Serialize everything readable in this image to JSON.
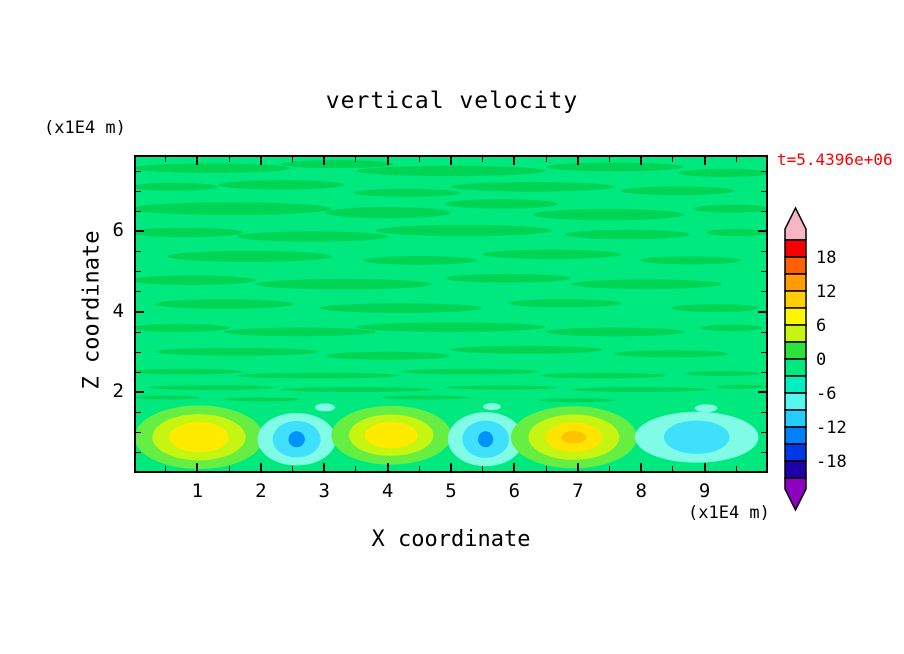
{
  "title": "vertical velocity",
  "time_label": "t=5.4396e+06",
  "axes": {
    "x_label": "X coordinate",
    "x_unit": "(x1E4 m)",
    "y_label": "Z coordinate",
    "y_unit": "(x1E4 m)",
    "xlim": [
      0,
      10
    ],
    "ylim": [
      0,
      7.9
    ],
    "x_ticks": [
      1,
      2,
      3,
      4,
      5,
      6,
      7,
      8,
      9
    ],
    "x_minor": [
      0.5,
      1.5,
      2.5,
      3.5,
      4.5,
      5.5,
      6.5,
      7.5,
      8.5,
      9.5
    ],
    "y_ticks": [
      2,
      4,
      6
    ],
    "y_minor": [
      0.5,
      1,
      1.5,
      2.5,
      3,
      3.5,
      4.5,
      5,
      5.5,
      6.5,
      7,
      7.5
    ]
  },
  "colorbar": {
    "labels": [
      "18",
      "12",
      "6",
      "0",
      "-6",
      "-12",
      "-18"
    ],
    "levels": [
      21,
      18,
      15,
      12,
      9,
      6,
      3,
      0,
      -3,
      -6,
      -9,
      -12,
      -15,
      -18,
      -21
    ],
    "box_colors": [
      "#f80000",
      "#ff6000",
      "#ff9c00",
      "#ffcf00",
      "#fdf800",
      "#c9f412",
      "#2ce23c",
      "#00e97e",
      "#00efc0",
      "#57f7f0",
      "#25ccff",
      "#0080ff",
      "#0038e8",
      "#2000a8"
    ],
    "top_arrow_color": "#f6b6c6",
    "bottom_arrow_color": "#8c00c0"
  },
  "chart_data": {
    "type": "heatmap",
    "title": "vertical velocity",
    "xlabel": "X coordinate (x1E4 m)",
    "ylabel": "Z coordinate (x1E4 m)",
    "time_annotation": "t=5.4396e+06",
    "xlim": [
      0,
      10
    ],
    "ylim": [
      0,
      7.9
    ],
    "contour_interval": 3,
    "value_range_shown": [
      -21,
      21
    ],
    "legend_position": "right",
    "grid": false,
    "description": "Filled contour field of vertical velocity: near-zero spring-green background with thin darker-green streaks aloft (z > 2), and alternating convective cells below z = 2 - updrafts (yellow cores, about +9 to +15) and downdrafts (cyan/blue cores, about -6 to -12).",
    "updrafts": [
      {
        "x": 1.0,
        "z": 0.85,
        "peak": 13
      },
      {
        "x": 4.05,
        "z": 0.9,
        "peak": 12
      },
      {
        "x": 6.95,
        "z": 0.85,
        "peak": 15
      }
    ],
    "downdrafts": [
      {
        "x": 2.55,
        "z": 0.8,
        "peak": -11
      },
      {
        "x": 5.55,
        "z": 0.8,
        "peak": -11
      },
      {
        "x": 8.9,
        "z": 0.85,
        "peak": -8
      }
    ],
    "field": {
      "bg_color": "#00e97e",
      "streak_color": "#00d455",
      "streaks": [
        [
          1.2,
          7.62,
          1.25,
          0.12
        ],
        [
          3.2,
          7.72,
          0.9,
          0.1
        ],
        [
          5.0,
          7.55,
          1.5,
          0.13
        ],
        [
          7.6,
          7.65,
          1.1,
          0.11
        ],
        [
          9.35,
          7.5,
          0.75,
          0.1
        ],
        [
          0.6,
          7.15,
          0.7,
          0.1
        ],
        [
          2.3,
          7.2,
          1.0,
          0.12
        ],
        [
          4.3,
          7.0,
          0.85,
          0.1
        ],
        [
          6.3,
          7.15,
          1.3,
          0.12
        ],
        [
          8.6,
          7.05,
          0.9,
          0.11
        ],
        [
          1.5,
          6.6,
          1.6,
          0.16
        ],
        [
          4.0,
          6.5,
          1.0,
          0.14
        ],
        [
          5.8,
          6.72,
          0.9,
          0.12
        ],
        [
          7.5,
          6.45,
          1.2,
          0.14
        ],
        [
          9.45,
          6.6,
          0.6,
          0.1
        ],
        [
          0.8,
          6.0,
          0.9,
          0.12
        ],
        [
          2.8,
          5.9,
          1.2,
          0.13
        ],
        [
          5.2,
          6.05,
          1.4,
          0.14
        ],
        [
          7.8,
          5.95,
          1.0,
          0.12
        ],
        [
          9.55,
          6.0,
          0.5,
          0.09
        ],
        [
          1.8,
          5.4,
          1.3,
          0.14
        ],
        [
          4.5,
          5.3,
          0.9,
          0.11
        ],
        [
          6.6,
          5.45,
          1.1,
          0.12
        ],
        [
          8.8,
          5.3,
          0.8,
          0.1
        ],
        [
          0.9,
          4.8,
          1.0,
          0.12
        ],
        [
          3.3,
          4.7,
          1.4,
          0.13
        ],
        [
          5.9,
          4.85,
          1.0,
          0.11
        ],
        [
          8.1,
          4.7,
          1.2,
          0.12
        ],
        [
          1.4,
          4.2,
          1.1,
          0.12
        ],
        [
          4.2,
          4.1,
          1.3,
          0.12
        ],
        [
          6.8,
          4.22,
          0.9,
          0.1
        ],
        [
          9.2,
          4.1,
          0.7,
          0.1
        ],
        [
          0.7,
          3.6,
          0.8,
          0.1
        ],
        [
          2.6,
          3.5,
          1.2,
          0.11
        ],
        [
          5.0,
          3.62,
          1.5,
          0.12
        ],
        [
          7.6,
          3.5,
          1.1,
          0.11
        ],
        [
          9.45,
          3.6,
          0.5,
          0.08
        ],
        [
          1.6,
          3.0,
          1.3,
          0.1
        ],
        [
          4.0,
          2.9,
          1.0,
          0.1
        ],
        [
          6.2,
          3.05,
          1.2,
          0.1
        ],
        [
          8.5,
          2.95,
          0.9,
          0.09
        ],
        [
          0.8,
          2.5,
          0.9,
          0.07
        ],
        [
          2.9,
          2.4,
          1.3,
          0.07
        ],
        [
          5.3,
          2.5,
          1.1,
          0.07
        ],
        [
          7.4,
          2.4,
          1.0,
          0.07
        ],
        [
          9.3,
          2.45,
          0.6,
          0.06
        ],
        [
          1.2,
          2.1,
          1.0,
          0.06
        ],
        [
          3.5,
          2.05,
          1.2,
          0.06
        ],
        [
          5.8,
          2.1,
          0.9,
          0.05
        ],
        [
          8.0,
          2.05,
          1.1,
          0.06
        ],
        [
          9.6,
          2.12,
          0.4,
          0.05
        ],
        [
          0.5,
          1.85,
          0.5,
          0.05
        ],
        [
          2.0,
          1.8,
          0.6,
          0.05
        ],
        [
          4.6,
          1.85,
          0.7,
          0.05
        ],
        [
          7.0,
          1.78,
          0.6,
          0.05
        ]
      ],
      "blobs": [
        {
          "cx": 1.0,
          "cz": 0.85,
          "layers": [
            {
              "c": "#66ef42",
              "rx": 1.02,
              "ry": 0.8
            },
            {
              "c": "#c6f512",
              "rx": 0.74,
              "ry": 0.58
            },
            {
              "c": "#ffeb00",
              "rx": 0.47,
              "ry": 0.38
            }
          ]
        },
        {
          "cx": 2.55,
          "cz": 0.8,
          "layers": [
            {
              "c": "#80fce6",
              "rx": 0.62,
              "ry": 0.66
            },
            {
              "c": "#3fe0fb",
              "rx": 0.38,
              "ry": 0.46
            },
            {
              "c": "#0092ff",
              "rx": 0.13,
              "ry": 0.2
            }
          ]
        },
        {
          "cx": 4.05,
          "cz": 0.9,
          "layers": [
            {
              "c": "#66ef42",
              "rx": 0.95,
              "ry": 0.74
            },
            {
              "c": "#c6f512",
              "rx": 0.67,
              "ry": 0.52
            },
            {
              "c": "#ffeb00",
              "rx": 0.42,
              "ry": 0.33
            }
          ]
        },
        {
          "cx": 5.55,
          "cz": 0.8,
          "layers": [
            {
              "c": "#80fce6",
              "rx": 0.6,
              "ry": 0.68
            },
            {
              "c": "#3fe0fb",
              "rx": 0.37,
              "ry": 0.47
            },
            {
              "c": "#0092ff",
              "rx": 0.12,
              "ry": 0.2
            }
          ]
        },
        {
          "cx": 6.95,
          "cz": 0.85,
          "layers": [
            {
              "c": "#66ef42",
              "rx": 1.0,
              "ry": 0.78
            },
            {
              "c": "#c6f512",
              "rx": 0.72,
              "ry": 0.57
            },
            {
              "c": "#ffe400",
              "rx": 0.45,
              "ry": 0.37
            },
            {
              "c": "#ffc400",
              "rx": 0.2,
              "ry": 0.16
            }
          ]
        },
        {
          "cx": 8.9,
          "cz": 0.85,
          "layers": [
            {
              "c": "#80fce6",
              "rx": 0.98,
              "ry": 0.64
            },
            {
              "c": "#3fe0fb",
              "rx": 0.52,
              "ry": 0.42
            }
          ]
        },
        {
          "cx": 3.0,
          "cz": 1.6,
          "layers": [
            {
              "c": "#80fce6",
              "rx": 0.16,
              "ry": 0.1
            }
          ]
        },
        {
          "cx": 5.65,
          "cz": 1.62,
          "layers": [
            {
              "c": "#80fce6",
              "rx": 0.14,
              "ry": 0.09
            }
          ]
        },
        {
          "cx": 9.05,
          "cz": 1.58,
          "layers": [
            {
              "c": "#80fce6",
              "rx": 0.18,
              "ry": 0.1
            }
          ]
        }
      ]
    }
  }
}
